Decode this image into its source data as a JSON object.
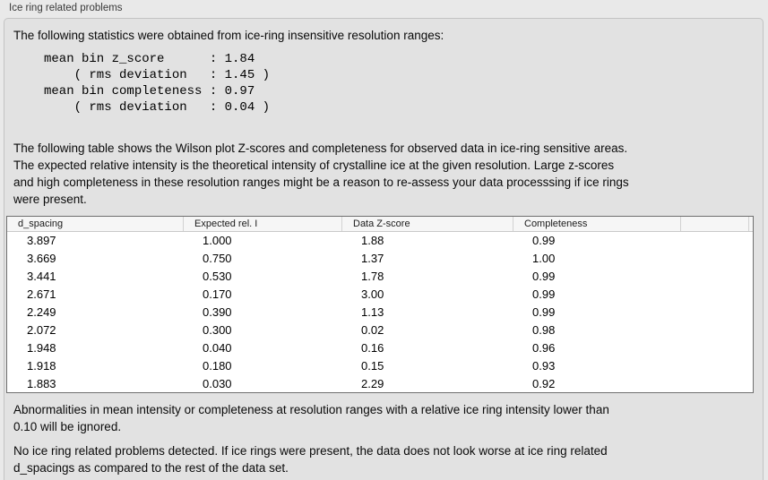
{
  "panel": {
    "title": "Ice ring related problems"
  },
  "intro": "The following statistics were obtained from ice-ring insensitive resolution ranges:",
  "stats_block": "mean bin z_score      : 1.84\n    ( rms deviation   : 1.45 )\nmean bin completeness : 0.97\n    ( rms deviation   : 0.04 )",
  "table_intro": "The following table shows the Wilson plot Z-scores and completeness for observed data in ice-ring sensitive areas.\nThe expected relative intensity is the theoretical intensity of crystalline ice at the given resolution. Large z-scores\nand high completeness in these resolution ranges might be a reason to re-assess your data processsing if ice rings\nwere present.",
  "table": {
    "columns": [
      "d_spacing",
      "Expected rel. I",
      "Data Z-score",
      "Completeness"
    ],
    "rows": [
      [
        "3.897",
        "1.000",
        "1.88",
        "0.99"
      ],
      [
        "3.669",
        "0.750",
        "1.37",
        "1.00"
      ],
      [
        "3.441",
        "0.530",
        "1.78",
        "0.99"
      ],
      [
        "2.671",
        "0.170",
        "3.00",
        "0.99"
      ],
      [
        "2.249",
        "0.390",
        "1.13",
        "0.99"
      ],
      [
        "2.072",
        "0.300",
        "0.02",
        "0.98"
      ],
      [
        "1.948",
        "0.040",
        "0.16",
        "0.96"
      ],
      [
        "1.918",
        "0.180",
        "0.15",
        "0.93"
      ],
      [
        "1.883",
        "0.030",
        "2.29",
        "0.92"
      ]
    ]
  },
  "note_ignore": "Abnormalities in mean intensity or completeness at resolution ranges with a relative ice ring intensity lower than\n0.10 will be ignored.",
  "conclusion": "No ice ring related problems detected. If ice rings were present, the data does not look worse at ice ring related\nd_spacings as compared to the rest of the data set.",
  "colors": {
    "panel_background": "#e2e2e2",
    "page_background": "#e9e9e9",
    "table_header_background": "#f6f6f6",
    "table_border": "#6f6f6f"
  }
}
